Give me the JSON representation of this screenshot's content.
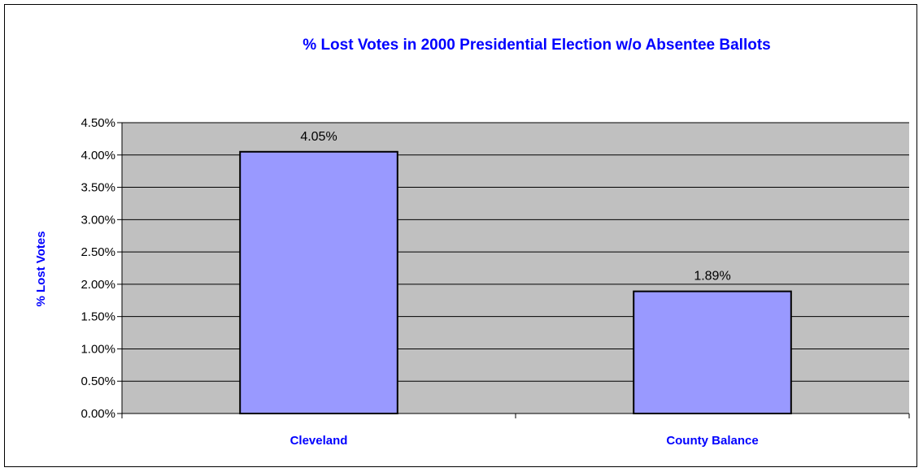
{
  "chart_data": {
    "type": "bar",
    "title": "% Lost Votes in 2000 Presidential Election w/o Absentee Ballots",
    "xlabel": "",
    "ylabel": "% Lost Votes",
    "categories": [
      "Cleveland",
      "County Balance"
    ],
    "values": [
      4.05,
      1.89
    ],
    "data_labels": [
      "4.05%",
      "1.89%"
    ],
    "ylim": [
      0,
      4.5
    ],
    "yticks": [
      0,
      0.5,
      1.0,
      1.5,
      2.0,
      2.5,
      3.0,
      3.5,
      4.0,
      4.5
    ],
    "ytick_labels": [
      "0.00%",
      "0.50%",
      "1.00%",
      "1.50%",
      "2.00%",
      "2.50%",
      "3.00%",
      "3.50%",
      "4.00%",
      "4.50%"
    ],
    "grid": true,
    "legend": false
  },
  "colors": {
    "title": "#0000FF",
    "ylabel": "#0000FF",
    "category_labels": "#0000FF",
    "plot_background": "#C0C0C0",
    "bar_fill": "#9999FF",
    "bar_stroke": "#000000",
    "gridline": "#000000"
  }
}
